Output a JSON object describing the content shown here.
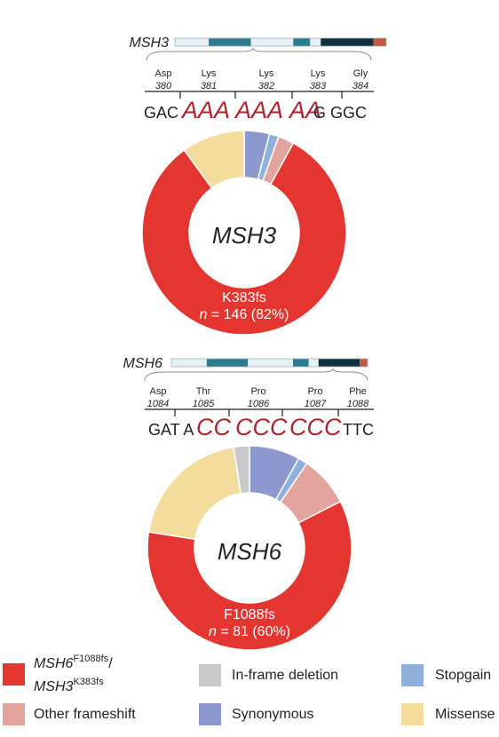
{
  "colors": {
    "hotspot": "#e43530",
    "other_frameshift": "#e2a49c",
    "in_frame_deletion": "#c9c9c9",
    "stopgain": "#8fb0da",
    "synonymous": "#8c98ce",
    "missense": "#f3dc9c",
    "domain_teal": "#2e7a8f",
    "domain_dark": "#0f2f3c",
    "domain_light": "#e7f1f4",
    "domain_tail": "#c0583f",
    "codon_red": "#b0232e",
    "text": "#231f20"
  },
  "panels": [
    {
      "gene": "MSH3",
      "codons": [
        {
          "aa": "Asp",
          "pos": "380"
        },
        {
          "aa": "Lys",
          "pos": "381"
        },
        {
          "aa": "Lys",
          "pos": "382"
        },
        {
          "aa": "Lys",
          "pos": "383"
        },
        {
          "aa": "Gly",
          "pos": "384"
        }
      ],
      "sequence": [
        {
          "text": "GAC",
          "style": "plain"
        },
        {
          "text": "AAA",
          "style": "red"
        },
        {
          "text": "AAA",
          "style": "red"
        },
        {
          "text": "AA",
          "style": "red"
        },
        {
          "text": "G GGC",
          "style": "plain"
        }
      ],
      "center_label": "MSH3",
      "hotspot_label": "K383fs",
      "count_prefix": "n",
      "count_text": " = 146 (82%)",
      "chart_data": {
        "type": "pie",
        "title": "",
        "categories": [
          "Hotspot frameshift",
          "Missense",
          "Synonymous",
          "Stopgain",
          "Other frameshift"
        ],
        "values": [
          82,
          10,
          4,
          1.5,
          2.5
        ],
        "unit": "%"
      }
    },
    {
      "gene": "MSH6",
      "codons": [
        {
          "aa": "Asp",
          "pos": "1084"
        },
        {
          "aa": "Thr",
          "pos": "1085"
        },
        {
          "aa": "Pro",
          "pos": "1086"
        },
        {
          "aa": "Pro",
          "pos": "1087"
        },
        {
          "aa": "Phe",
          "pos": "1088"
        }
      ],
      "sequence": [
        {
          "text": "GAT A",
          "style": "plain"
        },
        {
          "text": "CC",
          "style": "red"
        },
        {
          "text": "CCC",
          "style": "red"
        },
        {
          "text": "CCC",
          "style": "red"
        },
        {
          "text": "TTC",
          "style": "plain"
        }
      ],
      "center_label": "MSH6",
      "hotspot_label": "F1088fs",
      "count_prefix": "n",
      "count_text": " = 81 (60%)",
      "chart_data": {
        "type": "pie",
        "title": "",
        "categories": [
          "Hotspot frameshift",
          "Missense",
          "In-frame deletion",
          "Synonymous",
          "Stopgain",
          "Other frameshift"
        ],
        "values": [
          60,
          20,
          2.5,
          8,
          1.5,
          8
        ],
        "unit": "%"
      }
    }
  ],
  "legend": [
    {
      "key": "hotspot",
      "label_a": "MSH6",
      "sup_a": "F1088fs",
      "sep": "/",
      "label_b": "MSH3",
      "sup_b": "K383fs"
    },
    {
      "key": "in_frame_deletion",
      "label": "In-frame deletion"
    },
    {
      "key": "stopgain",
      "label": "Stopgain"
    },
    {
      "key": "other_frameshift",
      "label": "Other frameshift"
    },
    {
      "key": "synonymous",
      "label": "Synonymous"
    },
    {
      "key": "missense",
      "label": "Missense"
    }
  ]
}
